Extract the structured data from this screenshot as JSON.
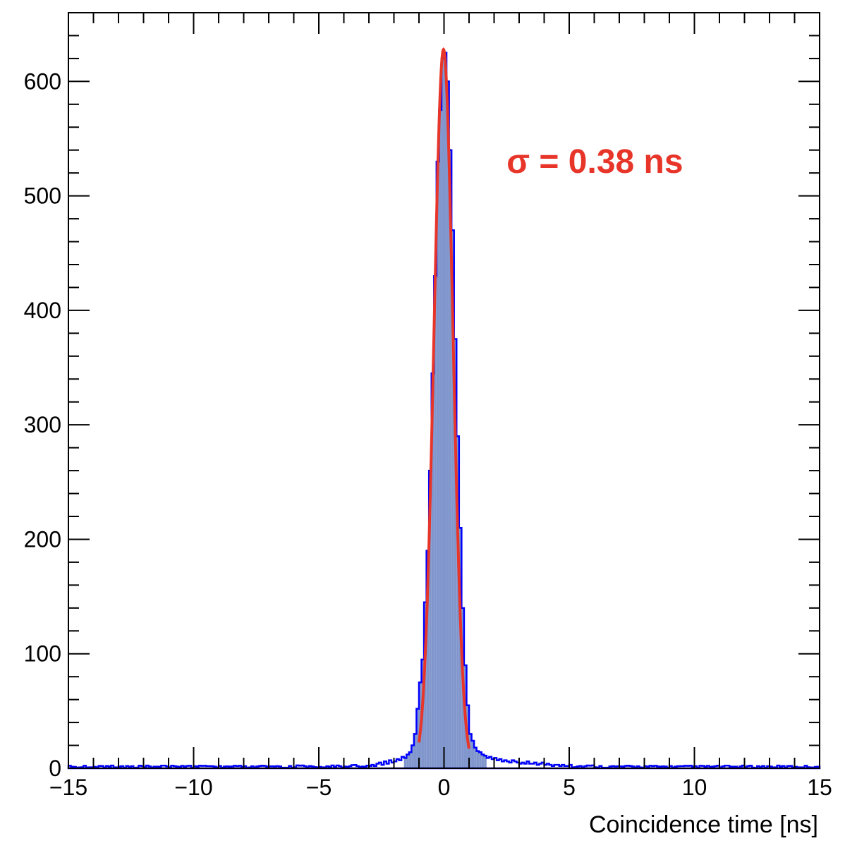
{
  "chart_data": {
    "type": "histogram",
    "title": "",
    "xlabel": "Coincidence time [ns]",
    "ylabel": "",
    "xlim": [
      -15,
      15
    ],
    "ylim": [
      0,
      660
    ],
    "grid": false,
    "x_ticks": [
      -15,
      -10,
      -5,
      0,
      5,
      10,
      15
    ],
    "x_tick_labels": [
      "−15",
      "−10",
      "−5",
      "0",
      "5",
      "10",
      "15"
    ],
    "y_ticks": [
      0,
      100,
      200,
      300,
      400,
      500,
      600
    ],
    "y_tick_labels": [
      "0",
      "100",
      "200",
      "300",
      "400",
      "500",
      "600"
    ],
    "bin_width": 0.1,
    "series": [
      {
        "kind": "histogram",
        "line_color": "#0000ff",
        "fill_color": "#8096cc",
        "bins": [
          [
            -3.0,
            2
          ],
          [
            -2.9,
            3
          ],
          [
            -2.8,
            2
          ],
          [
            -2.7,
            4
          ],
          [
            -2.6,
            5
          ],
          [
            -2.5,
            3
          ],
          [
            -2.4,
            6
          ],
          [
            -2.3,
            4
          ],
          [
            -2.2,
            7
          ],
          [
            -2.1,
            5
          ],
          [
            -2.0,
            6
          ],
          [
            -1.9,
            8
          ],
          [
            -1.8,
            7
          ],
          [
            -1.7,
            10
          ],
          [
            -1.6,
            9
          ],
          [
            -1.5,
            12
          ],
          [
            -1.4,
            14
          ],
          [
            -1.3,
            20
          ],
          [
            -1.2,
            30
          ],
          [
            -1.1,
            52
          ],
          [
            -1.0,
            75
          ],
          [
            -0.9,
            95
          ],
          [
            -0.8,
            145
          ],
          [
            -0.7,
            190
          ],
          [
            -0.6,
            260
          ],
          [
            -0.5,
            345
          ],
          [
            -0.4,
            430
          ],
          [
            -0.3,
            530
          ],
          [
            -0.2,
            575
          ],
          [
            -0.1,
            620
          ],
          [
            0.0,
            625
          ],
          [
            0.1,
            600
          ],
          [
            0.2,
            540
          ],
          [
            0.3,
            470
          ],
          [
            0.4,
            375
          ],
          [
            0.5,
            290
          ],
          [
            0.6,
            210
          ],
          [
            0.7,
            140
          ],
          [
            0.8,
            90
          ],
          [
            0.9,
            55
          ],
          [
            1.0,
            30
          ],
          [
            1.1,
            24
          ],
          [
            1.2,
            18
          ],
          [
            1.3,
            15
          ],
          [
            1.4,
            14
          ],
          [
            1.5,
            12
          ],
          [
            1.6,
            11
          ],
          [
            1.7,
            9
          ],
          [
            1.8,
            10
          ],
          [
            1.9,
            8
          ],
          [
            2.0,
            9
          ],
          [
            2.1,
            7
          ],
          [
            2.2,
            8
          ],
          [
            2.3,
            6
          ],
          [
            2.4,
            7
          ],
          [
            2.5,
            6
          ],
          [
            2.6,
            5
          ],
          [
            2.7,
            7
          ],
          [
            2.8,
            6
          ],
          [
            2.9,
            5
          ],
          [
            3.0,
            4
          ],
          [
            3.1,
            5
          ],
          [
            3.2,
            4
          ],
          [
            3.3,
            6
          ],
          [
            3.4,
            4
          ],
          [
            3.5,
            4
          ],
          [
            3.6,
            5
          ],
          [
            3.7,
            3
          ],
          [
            3.8,
            4
          ],
          [
            3.9,
            5
          ],
          [
            4.0,
            3
          ],
          [
            4.1,
            4
          ],
          [
            4.2,
            3
          ],
          [
            4.3,
            2
          ],
          [
            4.4,
            3
          ],
          [
            4.5,
            3
          ],
          [
            4.6,
            2
          ],
          [
            4.7,
            3
          ],
          [
            4.8,
            2
          ],
          [
            4.9,
            2
          ],
          [
            5.0,
            3
          ]
        ],
        "background_level": 1.5
      },
      {
        "kind": "gaussian_fit",
        "line_color": "#e8352a",
        "amplitude": 628,
        "mean": -0.02,
        "sigma": 0.38,
        "range": [
          -1.0,
          1.0
        ]
      }
    ],
    "annotations": [
      {
        "text": "σ = 0.38 ns",
        "color": "#e8352a",
        "x": 2.5,
        "y": 530
      }
    ]
  }
}
